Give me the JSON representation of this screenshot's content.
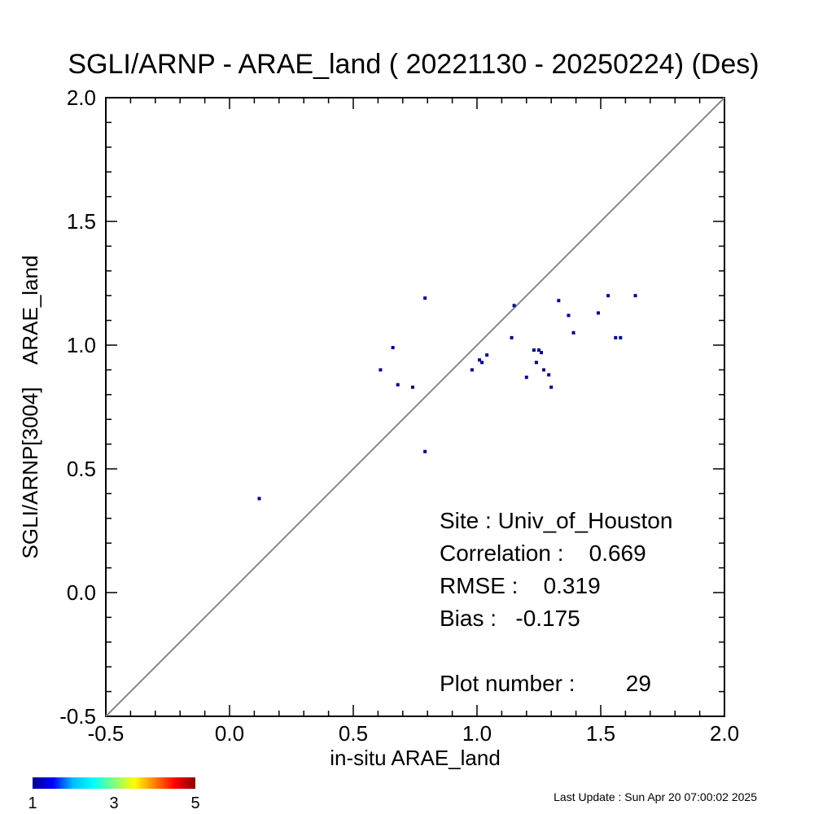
{
  "chart_data": {
    "type": "scatter",
    "title": "SGLI/ARNP - ARAE_land ( 20221130 - 20250224) (Des)",
    "xlabel": "in-situ ARAE_land",
    "ylabel": "SGLI/ARNP[3004]    ARAE_land",
    "xlim": [
      -0.5,
      2.0
    ],
    "ylim": [
      -0.5,
      2.0
    ],
    "xticks": [
      "-0.5",
      "0.0",
      "0.5",
      "1.0",
      "1.5",
      "2.0"
    ],
    "yticks": [
      "-0.5",
      "0.0",
      "0.5",
      "1.0",
      "1.5",
      "2.0"
    ],
    "reference_line": "1:1",
    "point_color": "#00008b",
    "points": [
      {
        "x": 0.12,
        "y": 0.38
      },
      {
        "x": 0.61,
        "y": 0.9
      },
      {
        "x": 0.66,
        "y": 0.99
      },
      {
        "x": 0.68,
        "y": 0.84
      },
      {
        "x": 0.74,
        "y": 0.83
      },
      {
        "x": 0.79,
        "y": 1.19
      },
      {
        "x": 0.79,
        "y": 0.57
      },
      {
        "x": 0.98,
        "y": 0.9
      },
      {
        "x": 1.01,
        "y": 0.94
      },
      {
        "x": 1.02,
        "y": 0.93
      },
      {
        "x": 1.04,
        "y": 0.96
      },
      {
        "x": 1.14,
        "y": 1.03
      },
      {
        "x": 1.15,
        "y": 1.16
      },
      {
        "x": 1.2,
        "y": 0.87
      },
      {
        "x": 1.23,
        "y": 0.98
      },
      {
        "x": 1.24,
        "y": 0.93
      },
      {
        "x": 1.25,
        "y": 0.98
      },
      {
        "x": 1.26,
        "y": 0.97
      },
      {
        "x": 1.27,
        "y": 0.9
      },
      {
        "x": 1.29,
        "y": 0.88
      },
      {
        "x": 1.3,
        "y": 0.83
      },
      {
        "x": 1.33,
        "y": 1.18
      },
      {
        "x": 1.37,
        "y": 1.12
      },
      {
        "x": 1.39,
        "y": 1.05
      },
      {
        "x": 1.49,
        "y": 1.13
      },
      {
        "x": 1.53,
        "y": 1.2
      },
      {
        "x": 1.56,
        "y": 1.03
      },
      {
        "x": 1.58,
        "y": 1.03
      },
      {
        "x": 1.64,
        "y": 1.2
      }
    ],
    "stats": {
      "site": "Site : Univ_of_Houston",
      "correlation": "Correlation :    0.669",
      "rmse": "RMSE :    0.319",
      "bias": "Bias :   -0.175",
      "plot_number": "Plot number :        29"
    },
    "colorbar": {
      "labels": [
        "1",
        "3",
        "5"
      ],
      "colors": [
        "#00008b",
        "#0000ff",
        "#00bfff",
        "#00ffff",
        "#7fff7f",
        "#ffff00",
        "#ff7f00",
        "#ff0000",
        "#8b0000"
      ]
    },
    "last_update": "Last Update : Sun Apr 20 07:00:02 2025"
  }
}
